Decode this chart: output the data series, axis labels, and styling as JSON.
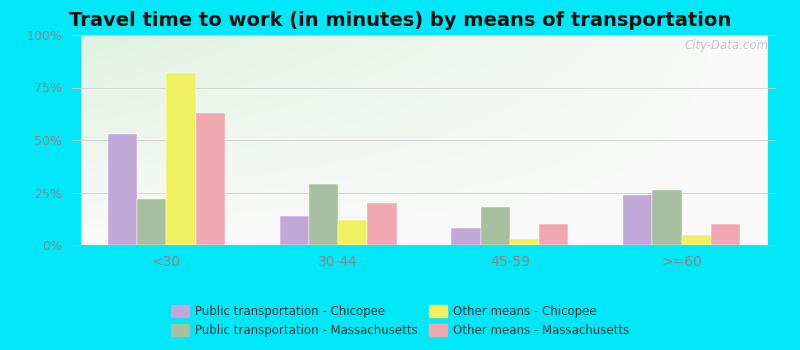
{
  "title": "Travel time to work (in minutes) by means of transportation",
  "categories": [
    "<30",
    "30-44",
    "45-59",
    ">=60"
  ],
  "series_order": [
    "Public transportation - Chicopee",
    "Public transportation - Massachusetts",
    "Other means - Chicopee",
    "Other means - Massachusetts"
  ],
  "series": {
    "Public transportation - Chicopee": [
      53,
      14,
      8,
      24
    ],
    "Public transportation - Massachusetts": [
      22,
      29,
      18,
      26
    ],
    "Other means - Chicopee": [
      82,
      12,
      3,
      5
    ],
    "Other means - Massachusetts": [
      63,
      20,
      10,
      10
    ]
  },
  "colors": {
    "Public transportation - Chicopee": "#c0a8d8",
    "Public transportation - Massachusetts": "#a8c0a0",
    "Other means - Chicopee": "#f0f060",
    "Other means - Massachusetts": "#f0a8b0"
  },
  "ylim": [
    0,
    100
  ],
  "yticks": [
    0,
    25,
    50,
    75,
    100
  ],
  "ytick_labels": [
    "0%",
    "25%",
    "50%",
    "75%",
    "100%"
  ],
  "background_outer": "#00e8f8",
  "grid_color": "#cccccc",
  "title_fontsize": 14,
  "tick_color": "#888888",
  "tick_fontsize": 9,
  "watermark": "City-Data.com",
  "legend_order": [
    "Public transportation - Chicopee",
    "Public transportation - Massachusetts",
    "Other means - Chicopee",
    "Other means - Massachusetts"
  ]
}
